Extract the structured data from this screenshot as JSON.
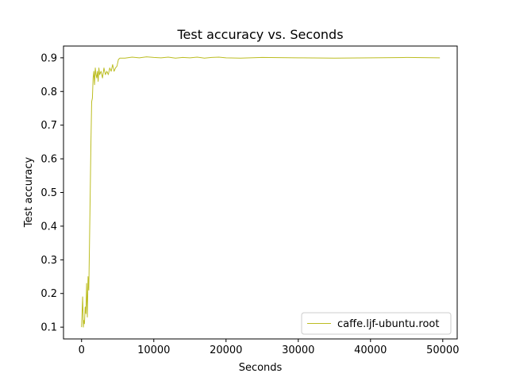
{
  "chart_data": {
    "type": "line",
    "title": "Test accuracy  vs. Seconds",
    "xlabel": "Seconds",
    "ylabel": "Test accuracy",
    "xlim": [
      -2500,
      52000
    ],
    "ylim": [
      0.065,
      0.935
    ],
    "xticks": [
      0,
      10000,
      20000,
      30000,
      40000,
      50000
    ],
    "xtick_labels": [
      "0",
      "10000",
      "20000",
      "30000",
      "40000",
      "50000"
    ],
    "yticks": [
      0.1,
      0.2,
      0.3,
      0.4,
      0.5,
      0.6,
      0.7,
      0.8,
      0.9
    ],
    "ytick_labels": [
      "0.1",
      "0.2",
      "0.3",
      "0.4",
      "0.5",
      "0.6",
      "0.7",
      "0.8",
      "0.9"
    ],
    "grid": false,
    "legend_position": "lower-right",
    "series": [
      {
        "name": "caffe.ljf-ubuntu.root",
        "color": "#bcbd22",
        "x": [
          0,
          150,
          250,
          300,
          400,
          500,
          600,
          700,
          800,
          900,
          1000,
          1100,
          1200,
          1300,
          1400,
          1500,
          1600,
          1700,
          1800,
          1900,
          2000,
          2100,
          2200,
          2300,
          2400,
          2500,
          2700,
          2900,
          3100,
          3300,
          3500,
          3700,
          3900,
          4100,
          4300,
          4500,
          4700,
          4900,
          5100,
          5300,
          6000,
          7000,
          8000,
          9000,
          10000,
          11000,
          12000,
          13000,
          14000,
          15000,
          16000,
          17000,
          18000,
          19000,
          20000,
          22000,
          25000,
          30000,
          35000,
          40000,
          45000,
          49600
        ],
        "y": [
          0.1,
          0.19,
          0.1,
          0.12,
          0.11,
          0.16,
          0.14,
          0.23,
          0.13,
          0.25,
          0.21,
          0.35,
          0.5,
          0.65,
          0.77,
          0.78,
          0.84,
          0.86,
          0.82,
          0.87,
          0.85,
          0.84,
          0.86,
          0.83,
          0.87,
          0.85,
          0.86,
          0.84,
          0.87,
          0.85,
          0.86,
          0.85,
          0.87,
          0.86,
          0.88,
          0.86,
          0.87,
          0.875,
          0.895,
          0.899,
          0.899,
          0.902,
          0.9,
          0.903,
          0.901,
          0.9,
          0.902,
          0.899,
          0.901,
          0.9,
          0.902,
          0.899,
          0.901,
          0.902,
          0.9,
          0.899,
          0.901,
          0.9,
          0.899,
          0.9,
          0.901,
          0.9
        ]
      }
    ]
  }
}
